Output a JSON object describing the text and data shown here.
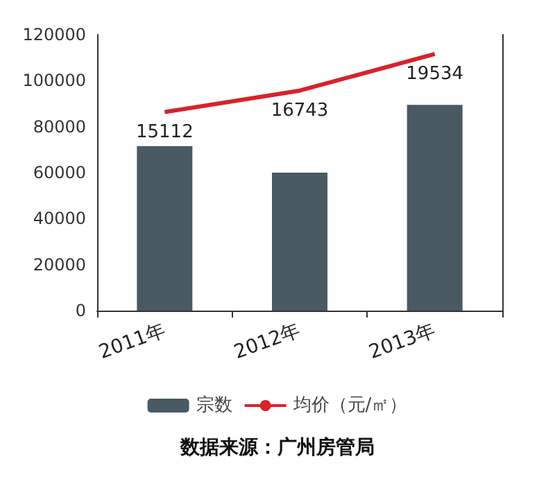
{
  "chart_data": {
    "type": "bar",
    "categories": [
      "2011年",
      "2012年",
      "2013年"
    ],
    "series": [
      {
        "name": "宗数",
        "color": "#4a5a62",
        "values": [
          71500,
          60000,
          89500
        ]
      },
      {
        "name": "均价（元/㎡）",
        "type": "line",
        "axis": "y2",
        "color": "#d9222a",
        "values": [
          15112,
          16743,
          19534
        ],
        "data_labels": true
      }
    ],
    "ylim": [
      0,
      120000
    ],
    "yticks": [
      0,
      20000,
      40000,
      60000,
      80000,
      100000,
      120000
    ],
    "grid": false,
    "legend": "bottom",
    "marker": "none",
    "annotations": [
      "数据来源：广州房管局"
    ]
  }
}
